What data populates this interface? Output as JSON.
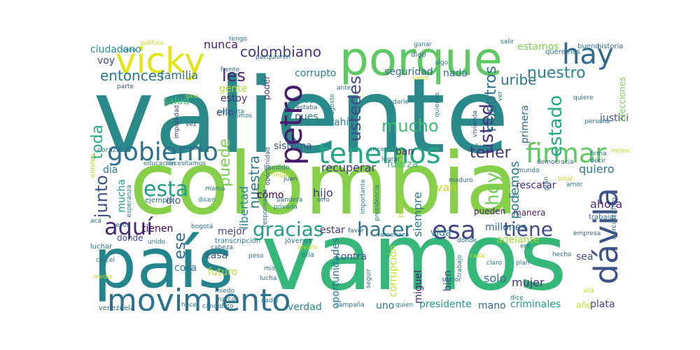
{
  "wordcloud": {
    "words": [
      {
        "text": "valiente",
        "color": "#2a8a8a",
        "rot": 0
      },
      {
        "text": "colombia",
        "color": "#86d049",
        "rot": 0
      },
      {
        "text": "vamos",
        "color": "#35b779",
        "rot": 0
      },
      {
        "text": "país",
        "color": "#25858e",
        "rot": 0
      },
      {
        "text": "porque",
        "color": "#5ec962",
        "rot": 0
      },
      {
        "text": "vicky",
        "color": "#e2e418",
        "rot": 0
      },
      {
        "text": "hay",
        "color": "#31688e",
        "rot": 0
      },
      {
        "text": "movimiento",
        "color": "#2c728e",
        "rot": 0
      },
      {
        "text": "dávila",
        "color": "#3b528b",
        "rot": 90
      },
      {
        "text": "petro",
        "color": "#481a6c",
        "rot": 90
      },
      {
        "text": "tenemos",
        "color": "#22a884",
        "rot": 0
      },
      {
        "text": "firmar",
        "color": "#5ec962",
        "rot": 0
      },
      {
        "text": "gobierno",
        "color": "#2c728e",
        "rot": 0
      },
      {
        "text": "esa",
        "color": "#414487",
        "rot": 0
      },
      {
        "text": "aquí",
        "color": "#482878",
        "rot": 0
      },
      {
        "text": "gracias",
        "color": "#1f9e89",
        "rot": 0
      },
      {
        "text": "hacer",
        "color": "#2c728e",
        "rot": 0
      },
      {
        "text": "tiene",
        "color": "#3e4a89",
        "rot": 0
      },
      {
        "text": "esta",
        "color": "#1f9e89",
        "rot": 0
      },
      {
        "text": "colombiano",
        "color": "#46337e",
        "rot": 0
      },
      {
        "text": "uribe",
        "color": "#2c728e",
        "rot": 0
      },
      {
        "text": "nuestro",
        "color": "#25858e",
        "rot": 0
      },
      {
        "text": "mucho",
        "color": "#3dbc74",
        "rot": 0
      },
      {
        "text": "ustedes",
        "color": "#3e4a89",
        "rot": 90
      },
      {
        "text": "usted",
        "color": "#472d7b",
        "rot": 90
      },
      {
        "text": "nosotros",
        "color": "#2c728e",
        "rot": 90
      },
      {
        "text": "estado",
        "color": "#22a884",
        "rot": 90
      },
      {
        "text": "tener",
        "color": "#46337e",
        "rot": 0
      },
      {
        "text": "hoy",
        "color": "#6ece58",
        "rot": 90
      },
      {
        "text": "podemos",
        "color": "#26828e",
        "rot": 90
      },
      {
        "text": "puede",
        "color": "#7ad151",
        "rot": 90
      },
      {
        "text": "junto",
        "color": "#3b528b",
        "rot": 90
      },
      {
        "text": "toda",
        "color": "#27ad81",
        "rot": 90
      },
      {
        "text": "nuestra",
        "color": "#2a788e",
        "rot": 90
      },
      {
        "text": "ese",
        "color": "#31688e",
        "rot": 90
      },
      {
        "text": "les",
        "color": "#482173",
        "rot": 0
      },
      {
        "text": "entonces",
        "color": "#2a788e",
        "rot": 0
      },
      {
        "text": "familia",
        "color": "#2c728e",
        "rot": 0
      },
      {
        "text": "ciudadano",
        "color": "#21918c",
        "rot": 0
      },
      {
        "text": "nunca",
        "color": "#481f70",
        "rot": 0
      },
      {
        "text": "voy",
        "color": "#3e4a89",
        "rot": 0
      },
      {
        "text": "corrupto",
        "color": "#26828e",
        "rot": 0
      },
      {
        "text": "seguridad",
        "color": "#31688e",
        "rot": 0
      },
      {
        "text": "nada",
        "color": "#2c728e",
        "rot": 0
      },
      {
        "text": "estamos",
        "color": "#7ad151",
        "rot": 0
      },
      {
        "text": "recuperar",
        "color": "#46337e",
        "rot": 0
      },
      {
        "text": "sistema",
        "color": "#3b528b",
        "rot": 0
      },
      {
        "text": "rescatar",
        "color": "#472d7b",
        "rot": 0
      },
      {
        "text": "quiero",
        "color": "#2a788e",
        "rot": 0
      },
      {
        "text": "ahora",
        "color": "#482878",
        "rot": 0
      },
      {
        "text": "millones",
        "color": "#31688e",
        "rot": 0
      },
      {
        "text": "adelante",
        "color": "#a0da39",
        "rot": 0
      },
      {
        "text": "mejor",
        "color": "#414487",
        "rot": 0
      },
      {
        "text": "casa",
        "color": "#3b528b",
        "rot": 0
      },
      {
        "text": "cosa",
        "color": "#2a788e",
        "rot": 0
      },
      {
        "text": "futuro",
        "color": "#b5de2b",
        "rot": 0
      },
      {
        "text": "verdad",
        "color": "#25858e",
        "rot": 0
      },
      {
        "text": "uno",
        "color": "#2c728e",
        "rot": 0
      },
      {
        "text": "presidente",
        "color": "#1f9e89",
        "rot": 0
      },
      {
        "text": "mano",
        "color": "#31688e",
        "rot": 0
      },
      {
        "text": "criminales",
        "color": "#1f9e89",
        "rot": 0
      },
      {
        "text": "plata",
        "color": "#3e4a89",
        "rot": 0
      },
      {
        "text": "solo",
        "color": "#2c728e",
        "rot": 0
      },
      {
        "text": "mujer",
        "color": "#46337e",
        "rot": 0
      },
      {
        "text": "contra",
        "color": "#3b528b",
        "rot": 0
      },
      {
        "text": "estoy",
        "color": "#472d7b",
        "rot": 0
      },
      {
        "text": "gente",
        "color": "#b5de2b",
        "rot": 0
      },
      {
        "text": "salud",
        "color": "#4ac16d",
        "rot": 0
      },
      {
        "text": "ello",
        "color": "#433e85",
        "rot": 0
      },
      {
        "text": "pues",
        "color": "#2c728e",
        "rot": 0
      },
      {
        "text": "esto",
        "color": "#21918c",
        "rot": 0
      },
      {
        "text": "ahí",
        "color": "#2a788e",
        "rot": 0
      },
      {
        "text": "cómo",
        "color": "#440154",
        "rot": 0
      },
      {
        "text": "dio",
        "color": "#3b528b",
        "rot": 0
      },
      {
        "text": "hijo",
        "color": "#433e85",
        "rot": 0
      },
      {
        "text": "van",
        "color": "#c2df23",
        "rot": 0
      },
      {
        "text": "siempre",
        "color": "#2a788e",
        "rot": 90
      },
      {
        "text": "libertad",
        "color": "#26828e",
        "rot": 90
      },
      {
        "text": "mucha",
        "color": "#1f9e89",
        "rot": 90
      },
      {
        "text": "día",
        "color": "#2a788e",
        "rot": 0
      },
      {
        "text": "fuerza",
        "color": "#3dbc74",
        "rot": 0
      },
      {
        "text": "ban",
        "color": "#482878",
        "rot": 0
      },
      {
        "text": "primera",
        "color": "#31688e",
        "rot": 90
      },
      {
        "text": "justicia",
        "color": "#3b528b",
        "rot": 0
      },
      {
        "text": "elecciones",
        "color": "#7ad151",
        "rot": 90
      },
      {
        "text": "tienen",
        "color": "#440154",
        "rot": 0
      },
      {
        "text": "donde",
        "color": "#3e4a89",
        "rot": 0
      },
      {
        "text": "estar",
        "color": "#46337e",
        "rot": 0
      },
      {
        "text": "vida",
        "color": "#25858e",
        "rot": 0
      },
      {
        "text": "sea",
        "color": "#3b528b",
        "rot": 0
      },
      {
        "text": "poder",
        "color": "#46337e",
        "rot": 90
      },
      {
        "text": "corrupción",
        "color": "#c2df23",
        "rot": 90
      },
      {
        "text": "oportunidades",
        "color": "#2a788e",
        "rot": 90
      },
      {
        "text": "miguel",
        "color": "#482173",
        "rot": 90
      },
      {
        "text": "bien",
        "color": "#3e4a89",
        "rot": 90
      },
      {
        "text": "pueden",
        "color": "#481f70",
        "rot": 0
      },
      {
        "text": "manera",
        "color": "#482878",
        "rot": 0
      },
      {
        "text": "año",
        "color": "#c2df23",
        "rot": 0
      },
      {
        "text": "política",
        "color": "#c2df23",
        "rot": 0
      },
      {
        "text": "creo",
        "color": "#2a788e",
        "rot": 0
      },
      {
        "text": "tengo",
        "color": "#2c728e",
        "rot": 0
      },
      {
        "text": "paz",
        "color": "#31688e",
        "rot": 0
      },
      {
        "text": "quieren",
        "color": "#2a788e",
        "rot": 0
      },
      {
        "text": "ganar",
        "color": "#2a788e",
        "rot": 0
      },
      {
        "text": "salir",
        "color": "#2a788e",
        "rot": 0
      },
      {
        "text": "digo",
        "color": "#31688e",
        "rot": 0
      },
      {
        "text": "algo",
        "color": "#2a788e",
        "rot": 0
      },
      {
        "text": "queremos",
        "color": "#2c728e",
        "rot": 0
      },
      {
        "text": "bueno",
        "color": "#2c728e",
        "rot": 0
      },
      {
        "text": "historia",
        "color": "#31688e",
        "rot": 0
      },
      {
        "text": "parte",
        "color": "#3b528b",
        "rot": 0
      },
      {
        "text": "frente",
        "color": "#31688e",
        "rot": 0
      },
      {
        "text": "tanto",
        "color": "#c2df23",
        "rot": 0
      },
      {
        "text": "ante",
        "color": "#2a788e",
        "rot": 0
      },
      {
        "text": "sino",
        "color": "#b5de2b",
        "rot": 0
      },
      {
        "text": "necesita",
        "color": "#2c728e",
        "rot": 0
      },
      {
        "text": "somos",
        "color": "#2a788e",
        "rot": 0
      },
      {
        "text": "estaba",
        "color": "#31688e",
        "rot": 0
      },
      {
        "text": "agosto",
        "color": "#2a788e",
        "rot": 90
      },
      {
        "text": "quienes",
        "color": "#2a788e",
        "rot": 90
      },
      {
        "text": "darle",
        "color": "#2a788e",
        "rot": 0
      },
      {
        "text": "vivienda",
        "color": "#3b528b",
        "rot": 90
      },
      {
        "text": "ver",
        "color": "#2a788e",
        "rot": 90
      },
      {
        "text": "quiere",
        "color": "#2c728e",
        "rot": 0
      },
      {
        "text": "persona",
        "color": "#2a788e",
        "rot": 0
      },
      {
        "text": "momento",
        "color": "#c2df23",
        "rot": 0
      },
      {
        "text": "vez",
        "color": "#3b528b",
        "rot": 0
      },
      {
        "text": "impunidad",
        "color": "#46337e",
        "rot": 90
      },
      {
        "text": "corazón",
        "color": "#2a788e",
        "rot": 0
      },
      {
        "text": "libre",
        "color": "#2c728e",
        "rot": 0
      },
      {
        "text": "encontró",
        "color": "#2a788e",
        "rot": 0
      },
      {
        "text": "oportunidad",
        "color": "#3b528b",
        "rot": 90
      },
      {
        "text": "fuera",
        "color": "#2a788e",
        "rot": 0
      },
      {
        "text": "lograr",
        "color": "#31688e",
        "rot": 0
      },
      {
        "text": "firma",
        "color": "#2a788e",
        "rot": 0
      },
      {
        "text": "decir",
        "color": "#2c728e",
        "rot": 0
      },
      {
        "text": "empleo",
        "color": "#b5de2b",
        "rot": 90
      },
      {
        "text": "educación",
        "color": "#2a788e",
        "rot": 0
      },
      {
        "text": "necesitamos",
        "color": "#2c728e",
        "rot": 0
      },
      {
        "text": "bandido",
        "color": "#2c728e",
        "rot": 0
      },
      {
        "text": "llegar",
        "color": "#c2df23",
        "rot": 0
      },
      {
        "text": "juan",
        "color": "#3b528b",
        "rot": 0
      },
      {
        "text": "mundo",
        "color": "#2a788e",
        "rot": 0
      },
      {
        "text": "democracia",
        "color": "#31688e",
        "rot": 0
      },
      {
        "text": "gran",
        "color": "#2c728e",
        "rot": 90
      },
      {
        "text": "total",
        "color": "#c2df23",
        "rot": 0
      },
      {
        "text": "amor",
        "color": "#2a788e",
        "rot": 0
      },
      {
        "text": "mamá",
        "color": "#2a788e",
        "rot": 0
      },
      {
        "text": "responsable",
        "color": "#2c728e",
        "rot": 90
      },
      {
        "text": "maduro",
        "color": "#31688e",
        "rot": 0
      },
      {
        "text": "tan",
        "color": "#2a788e",
        "rot": 0
      },
      {
        "text": "esperanza",
        "color": "#2a788e",
        "rot": 90
      },
      {
        "text": "ejemplo",
        "color": "#2c728e",
        "rot": 0
      },
      {
        "text": "dicen",
        "color": "#2a788e",
        "rot": 0
      },
      {
        "text": "bandera",
        "color": "#2c728e",
        "rot": 0
      },
      {
        "text": "otro",
        "color": "#31688e",
        "rot": 0
      },
      {
        "text": "privada",
        "color": "#2a788e",
        "rot": 0
      },
      {
        "text": "importante",
        "color": "#2a788e",
        "rot": 90
      },
      {
        "text": "presidencia",
        "color": "#2a788e",
        "rot": 90
      },
      {
        "text": "político",
        "color": "#b5de2b",
        "rot": 90
      },
      {
        "text": "narcotráfico",
        "color": "#2c728e",
        "rot": 90
      },
      {
        "text": "trabajar",
        "color": "#31688e",
        "rot": 0
      },
      {
        "text": "acá",
        "color": "#2a788e",
        "rot": 0
      },
      {
        "text": "esos",
        "color": "#2c728e",
        "rot": 0
      },
      {
        "text": "bogotá",
        "color": "#2a788e",
        "rot": 0
      },
      {
        "text": "favor",
        "color": "#31688e",
        "rot": 0
      },
      {
        "text": "amenaza",
        "color": "#2c728e",
        "rot": 0
      },
      {
        "text": "dónde",
        "color": "#2a788e",
        "rot": 0
      },
      {
        "text": "empresa",
        "color": "#31688e",
        "rot": 0
      },
      {
        "text": "luchar",
        "color": "#2c728e",
        "rot": 0
      },
      {
        "text": "unido",
        "color": "#2a788e",
        "rot": 0
      },
      {
        "text": "transcripción",
        "color": "#2a788e",
        "rot": 0
      },
      {
        "text": "jóvenes",
        "color": "#2c728e",
        "rot": 0
      },
      {
        "text": "cabeza",
        "color": "#31688e",
        "rot": 0
      },
      {
        "text": "álvaro",
        "color": "#c2df23",
        "rot": 0
      },
      {
        "text": "ella",
        "color": "#2a788e",
        "rot": 0
      },
      {
        "text": "era",
        "color": "#2c728e",
        "rot": 0
      },
      {
        "text": "hecho",
        "color": "#31688e",
        "rot": 0
      },
      {
        "text": "cárcel",
        "color": "#2a788e",
        "rot": 0
      },
      {
        "text": "peso",
        "color": "#2c728e",
        "rot": 0
      },
      {
        "text": "cada",
        "color": "#c2df23",
        "rot": 0
      },
      {
        "text": "claro",
        "color": "#2a788e",
        "rot": 0
      },
      {
        "text": "plan",
        "color": "#2a788e",
        "rot": 0
      },
      {
        "text": "mis",
        "color": "#2c728e",
        "rot": 0
      },
      {
        "text": "medio",
        "color": "#c2df23",
        "rot": 0
      },
      {
        "text": "lucha",
        "color": "#31688e",
        "rot": 0
      },
      {
        "text": "seguir",
        "color": "#2a788e",
        "rot": 90
      },
      {
        "text": "sector",
        "color": "#2c728e",
        "rot": 0
      },
      {
        "text": "trabajo",
        "color": "#2a788e",
        "rot": 90
      },
      {
        "text": "venezuela",
        "color": "#31688e",
        "rot": 0
      },
      {
        "text": "hace",
        "color": "#2a788e",
        "rot": 0
      },
      {
        "text": "candidato",
        "color": "#2c728e",
        "rot": 0
      },
      {
        "text": "nadie",
        "color": "#2a788e",
        "rot": 0
      },
      {
        "text": "campaña",
        "color": "#2c728e",
        "rot": 0
      },
      {
        "text": "quien",
        "color": "#2a788e",
        "rot": 0
      },
      {
        "text": "dice",
        "color": "#2a788e",
        "rot": 0
      },
      {
        "text": "allá",
        "color": "#c2df23",
        "rot": 0
      },
      {
        "text": "narco",
        "color": "#2a788e",
        "rot": 0
      },
      {
        "text": "miedo",
        "color": "#2c728e",
        "rot": 0
      }
    ]
  }
}
